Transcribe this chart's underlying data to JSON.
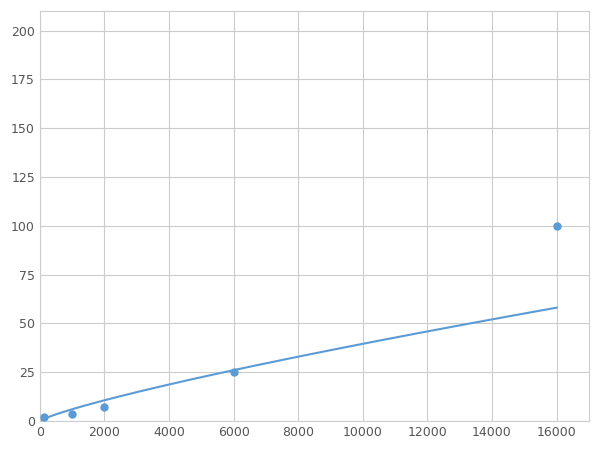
{
  "x": [
    125,
    500,
    1000,
    2000,
    6000,
    16000
  ],
  "y": [
    2.0,
    3.0,
    3.5,
    7.0,
    25.0,
    100.0
  ],
  "line_color": "#5b9bd5",
  "marker_indices": [
    0,
    2,
    3,
    4,
    5
  ],
  "marker_color": "#5b9bd5",
  "marker_size": 5,
  "xlim": [
    0,
    17000
  ],
  "ylim": [
    0,
    210
  ],
  "xticks": [
    0,
    2000,
    4000,
    6000,
    8000,
    10000,
    12000,
    14000,
    16000
  ],
  "yticks": [
    0,
    25,
    50,
    75,
    100,
    125,
    150,
    175,
    200
  ],
  "grid": true,
  "background_color": "#ffffff",
  "plot_bg_color": "#ffffff",
  "linewidth": 1.5
}
